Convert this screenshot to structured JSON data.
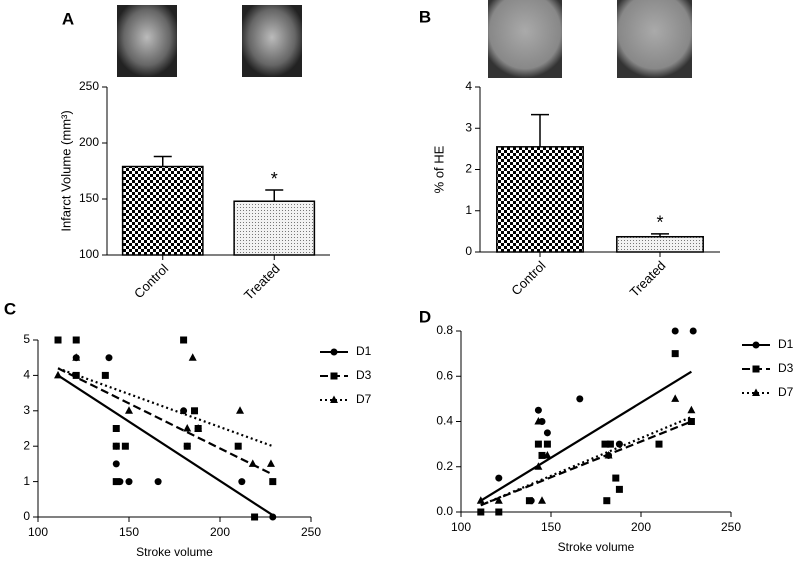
{
  "chart_data": [
    {
      "type": "bar",
      "panel": "A",
      "ylabel": "Infarct Volume (mm³)",
      "categories": [
        "Control",
        "Treated"
      ],
      "values": [
        179,
        148
      ],
      "errors": [
        9,
        10
      ],
      "patterns": [
        "checker",
        "dots"
      ],
      "annotation": "*",
      "ylim": [
        100,
        250
      ],
      "yticks": [
        100,
        150,
        200,
        250
      ]
    },
    {
      "type": "bar",
      "panel": "B",
      "ylabel": "% of HE",
      "categories": [
        "Control",
        "Treated"
      ],
      "values": [
        2.55,
        0.37
      ],
      "errors": [
        0.78,
        0.07
      ],
      "patterns": [
        "checker",
        "dots"
      ],
      "annotation": "*",
      "ylim": [
        0,
        4
      ],
      "yticks": [
        0,
        1,
        2,
        3,
        4
      ]
    },
    {
      "type": "scatter",
      "panel": "C",
      "xlabel": "Stroke volume",
      "xlim": [
        100,
        250
      ],
      "xticks": [
        100,
        150,
        200,
        250
      ],
      "ylim": [
        0,
        5
      ],
      "yticks": [
        0,
        1,
        2,
        3,
        4,
        5
      ],
      "series": [
        {
          "name": "D1",
          "marker": "circle",
          "line_style": "solid",
          "color": "#000000",
          "x": [
            121,
            139,
            143,
            143,
            145,
            150,
            166,
            180,
            182,
            188,
            212,
            229
          ],
          "y": [
            4.5,
            4.5,
            2,
            1.5,
            1,
            1,
            1,
            3,
            2,
            2.5,
            1,
            0
          ],
          "fit_x": [
            111,
            229
          ],
          "fit_y": [
            4.0,
            0.05
          ]
        },
        {
          "name": "D3",
          "marker": "square",
          "line_style": "dashed",
          "color": "#000000",
          "x": [
            111,
            121,
            121,
            137,
            143,
            143,
            148,
            143,
            180,
            186,
            182,
            188,
            210,
            219,
            229
          ],
          "y": [
            5,
            5,
            4,
            4,
            2.5,
            2,
            2,
            1,
            5,
            3,
            2,
            2.5,
            2,
            0,
            1
          ],
          "fit_x": [
            111,
            229
          ],
          "fit_y": [
            4.2,
            1.2
          ]
        },
        {
          "name": "D7",
          "marker": "triangle",
          "line_style": "dotted",
          "color": "#000000",
          "x": [
            111,
            121,
            150,
            185,
            182,
            211,
            218,
            228,
            188
          ],
          "y": [
            4,
            4.5,
            3,
            4.5,
            2.5,
            3,
            1.5,
            1.5,
            2.5
          ],
          "fit_x": [
            111,
            229
          ],
          "fit_y": [
            4.2,
            2.0
          ]
        }
      ]
    },
    {
      "type": "scatter",
      "panel": "D",
      "xlabel": "Stroke volume",
      "xlim": [
        100,
        250
      ],
      "xticks": [
        100,
        150,
        200,
        250
      ],
      "ylim": [
        0,
        0.8
      ],
      "yticks": [
        {
          "value": 0,
          "label": "0.0"
        },
        0.2,
        0.4,
        0.6,
        0.8
      ],
      "series": [
        {
          "name": "D1",
          "marker": "circle",
          "line_style": "solid",
          "color": "#000000",
          "x": [
            121,
            139,
            143,
            145,
            148,
            166,
            182,
            182,
            188,
            219,
            229
          ],
          "y": [
            0.15,
            0.05,
            0.45,
            0.4,
            0.35,
            0.5,
            0.3,
            0.25,
            0.3,
            0.8,
            0.8
          ],
          "fit_x": [
            111,
            228
          ],
          "fit_y": [
            0.05,
            0.62
          ]
        },
        {
          "name": "D3",
          "marker": "square",
          "line_style": "dashed",
          "color": "#000000",
          "x": [
            111,
            121,
            138,
            143,
            145,
            148,
            180,
            181,
            183,
            186,
            188,
            210,
            219,
            228
          ],
          "y": [
            0,
            0,
            0.05,
            0.3,
            0.25,
            0.3,
            0.3,
            0.05,
            0.3,
            0.15,
            0.1,
            0.3,
            0.7,
            0.4
          ],
          "fit_x": [
            111,
            228
          ],
          "fit_y": [
            0.03,
            0.4
          ]
        },
        {
          "name": "D7",
          "marker": "triangle",
          "line_style": "dotted",
          "color": "#000000",
          "x": [
            111,
            121,
            143,
            143,
            145,
            148,
            182,
            219,
            228
          ],
          "y": [
            0.05,
            0.05,
            0.4,
            0.2,
            0.05,
            0.25,
            0.25,
            0.5,
            0.45
          ],
          "fit_x": [
            111,
            228
          ],
          "fit_y": [
            0.03,
            0.42
          ]
        }
      ]
    }
  ]
}
